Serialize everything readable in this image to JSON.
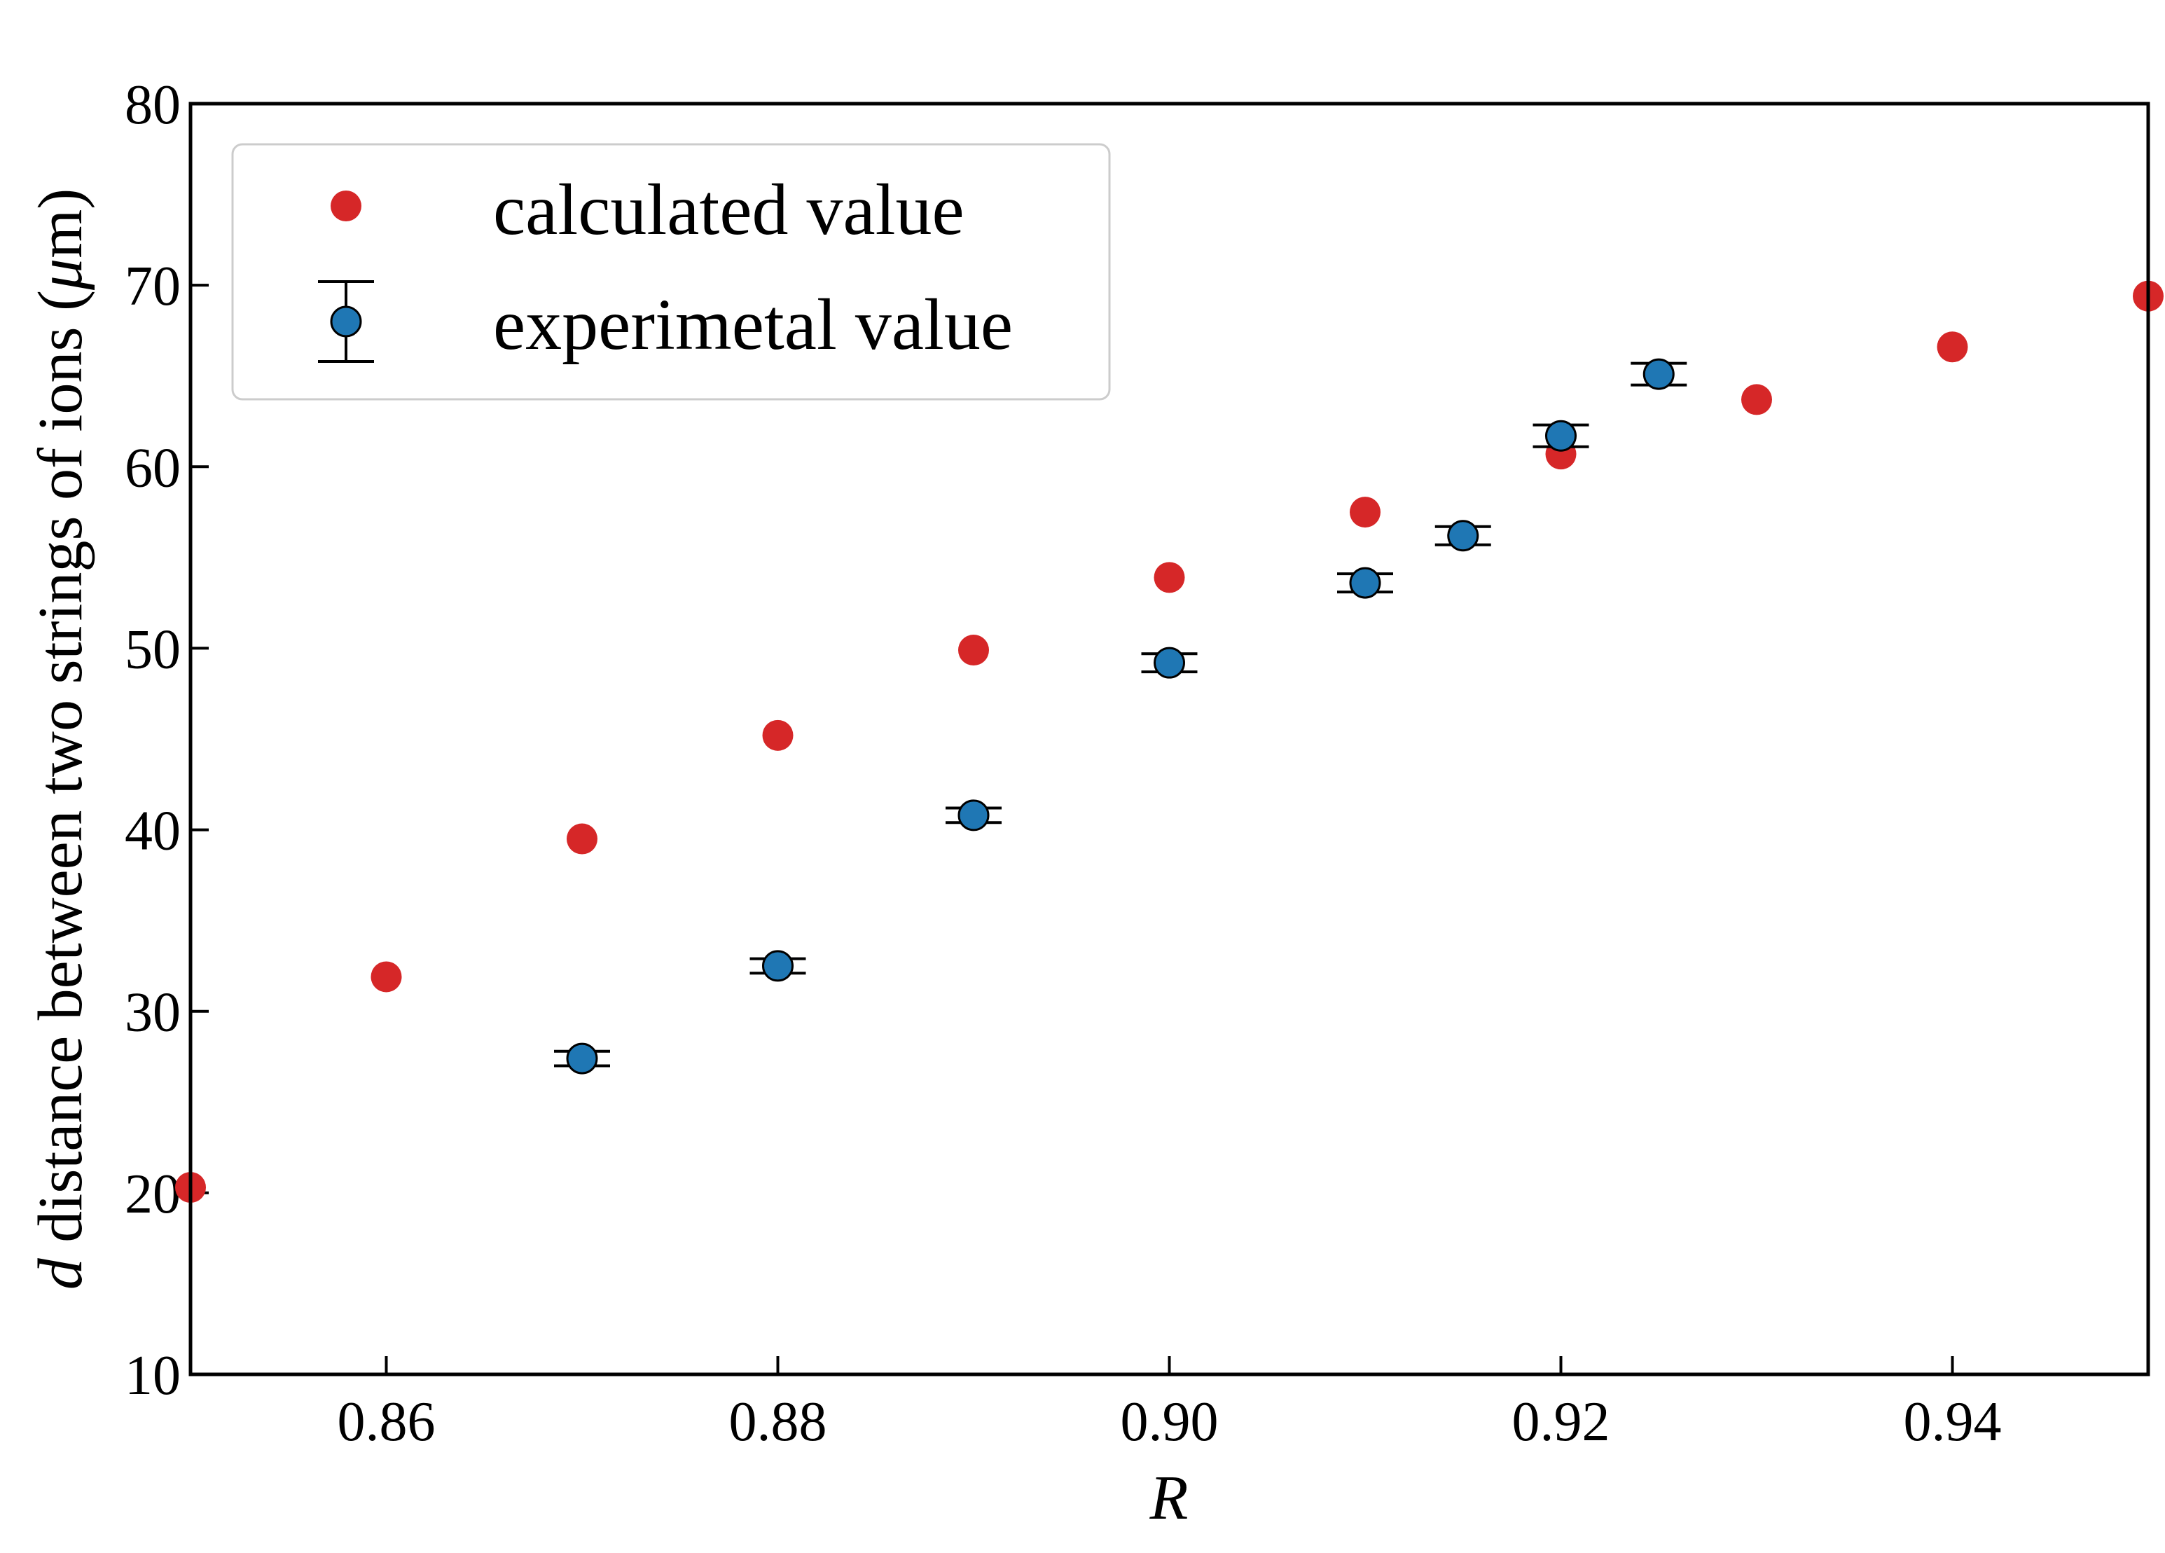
{
  "chart_data": {
    "type": "scatter",
    "xlabel": "R",
    "ylabel_var": "d",
    "ylabel_text": " distance between two strings of ions (",
    "ylabel_unit_mu": "μ",
    "ylabel_unit_rest": "m)",
    "xlim": [
      0.85,
      0.95
    ],
    "ylim": [
      10,
      80
    ],
    "xticks": [
      0.86,
      0.88,
      0.9,
      0.92,
      0.94
    ],
    "xtick_labels": [
      "0.86",
      "0.88",
      "0.90",
      "0.92",
      "0.94"
    ],
    "yticks": [
      10,
      20,
      30,
      40,
      50,
      60,
      70,
      80
    ],
    "ytick_labels": [
      "10",
      "20",
      "30",
      "40",
      "50",
      "60",
      "70",
      "80"
    ],
    "grid": false,
    "legend_position": "top-left",
    "series": [
      {
        "name": "calculated value",
        "color": "#d62728",
        "marker": "circle",
        "x": [
          0.85,
          0.86,
          0.87,
          0.88,
          0.89,
          0.9,
          0.91,
          0.92,
          0.93,
          0.94,
          0.95
        ],
        "y": [
          20.3,
          31.9,
          39.5,
          45.2,
          49.9,
          53.9,
          57.5,
          60.7,
          63.7,
          66.6,
          69.4
        ]
      },
      {
        "name": "experimetal value",
        "color": "#1f77b4",
        "edgecolor": "#000000",
        "marker": "circle",
        "errorbar": true,
        "x": [
          0.87,
          0.88,
          0.89,
          0.9,
          0.91,
          0.915,
          0.92,
          0.925
        ],
        "y": [
          27.4,
          32.5,
          40.8,
          49.2,
          53.6,
          56.2,
          61.7,
          65.1
        ],
        "yerr": [
          0.4,
          0.4,
          0.4,
          0.5,
          0.5,
          0.5,
          0.6,
          0.6
        ]
      }
    ]
  }
}
